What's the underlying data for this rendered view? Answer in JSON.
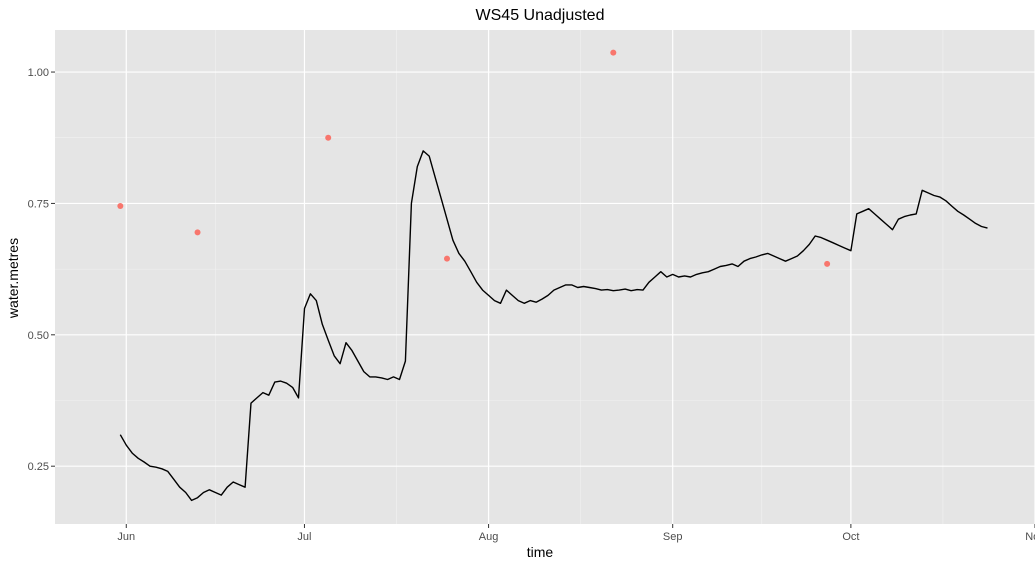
{
  "chart_data": {
    "type": "line",
    "title": "WS45 Unadjusted",
    "xlabel": "time",
    "ylabel": "water.metres",
    "x_ticks": [
      "Jun",
      "Jul",
      "Aug",
      "Sep",
      "Oct",
      "Nov"
    ],
    "y_ticks": [
      "0.25",
      "0.50",
      "0.75",
      "1.00"
    ],
    "ylim": [
      0.14,
      1.08
    ],
    "xlim": [
      "2018-05-20",
      "2018-11-01"
    ],
    "grid": true,
    "background_color": "#e5e5e5",
    "series": [
      {
        "type": "line",
        "color": "#000000",
        "points": [
          [
            "2018-05-31",
            0.31
          ],
          [
            "2018-06-01",
            0.29
          ],
          [
            "2018-06-02",
            0.275
          ],
          [
            "2018-06-03",
            0.265
          ],
          [
            "2018-06-04",
            0.258
          ],
          [
            "2018-06-05",
            0.25
          ],
          [
            "2018-06-06",
            0.248
          ],
          [
            "2018-06-07",
            0.245
          ],
          [
            "2018-06-08",
            0.24
          ],
          [
            "2018-06-09",
            0.225
          ],
          [
            "2018-06-10",
            0.21
          ],
          [
            "2018-06-11",
            0.2
          ],
          [
            "2018-06-12",
            0.185
          ],
          [
            "2018-06-13",
            0.19
          ],
          [
            "2018-06-14",
            0.2
          ],
          [
            "2018-06-15",
            0.205
          ],
          [
            "2018-06-16",
            0.2
          ],
          [
            "2018-06-17",
            0.195
          ],
          [
            "2018-06-18",
            0.21
          ],
          [
            "2018-06-19",
            0.22
          ],
          [
            "2018-06-20",
            0.215
          ],
          [
            "2018-06-21",
            0.21
          ],
          [
            "2018-06-22",
            0.37
          ],
          [
            "2018-06-23",
            0.38
          ],
          [
            "2018-06-24",
            0.39
          ],
          [
            "2018-06-25",
            0.385
          ],
          [
            "2018-06-26",
            0.41
          ],
          [
            "2018-06-27",
            0.412
          ],
          [
            "2018-06-28",
            0.408
          ],
          [
            "2018-06-29",
            0.4
          ],
          [
            "2018-06-30",
            0.38
          ],
          [
            "2018-07-01",
            0.55
          ],
          [
            "2018-07-02",
            0.578
          ],
          [
            "2018-07-03",
            0.565
          ],
          [
            "2018-07-04",
            0.52
          ],
          [
            "2018-07-05",
            0.49
          ],
          [
            "2018-07-06",
            0.46
          ],
          [
            "2018-07-07",
            0.445
          ],
          [
            "2018-07-08",
            0.485
          ],
          [
            "2018-07-09",
            0.47
          ],
          [
            "2018-07-10",
            0.45
          ],
          [
            "2018-07-11",
            0.43
          ],
          [
            "2018-07-12",
            0.42
          ],
          [
            "2018-07-13",
            0.42
          ],
          [
            "2018-07-14",
            0.418
          ],
          [
            "2018-07-15",
            0.415
          ],
          [
            "2018-07-16",
            0.42
          ],
          [
            "2018-07-17",
            0.415
          ],
          [
            "2018-07-18",
            0.45
          ],
          [
            "2018-07-19",
            0.75
          ],
          [
            "2018-07-20",
            0.82
          ],
          [
            "2018-07-21",
            0.85
          ],
          [
            "2018-07-22",
            0.84
          ],
          [
            "2018-07-23",
            0.8
          ],
          [
            "2018-07-24",
            0.76
          ],
          [
            "2018-07-25",
            0.72
          ],
          [
            "2018-07-26",
            0.68
          ],
          [
            "2018-07-27",
            0.655
          ],
          [
            "2018-07-28",
            0.64
          ],
          [
            "2018-07-29",
            0.62
          ],
          [
            "2018-07-30",
            0.6
          ],
          [
            "2018-07-31",
            0.585
          ],
          [
            "2018-08-01",
            0.575
          ],
          [
            "2018-08-02",
            0.565
          ],
          [
            "2018-08-03",
            0.56
          ],
          [
            "2018-08-04",
            0.585
          ],
          [
            "2018-08-05",
            0.575
          ],
          [
            "2018-08-06",
            0.565
          ],
          [
            "2018-08-07",
            0.56
          ],
          [
            "2018-08-08",
            0.565
          ],
          [
            "2018-08-09",
            0.562
          ],
          [
            "2018-08-10",
            0.568
          ],
          [
            "2018-08-11",
            0.575
          ],
          [
            "2018-08-12",
            0.585
          ],
          [
            "2018-08-13",
            0.59
          ],
          [
            "2018-08-14",
            0.595
          ],
          [
            "2018-08-15",
            0.595
          ],
          [
            "2018-08-16",
            0.59
          ],
          [
            "2018-08-17",
            0.592
          ],
          [
            "2018-08-18",
            0.59
          ],
          [
            "2018-08-19",
            0.588
          ],
          [
            "2018-08-20",
            0.585
          ],
          [
            "2018-08-21",
            0.586
          ],
          [
            "2018-08-22",
            0.584
          ],
          [
            "2018-08-23",
            0.585
          ],
          [
            "2018-08-24",
            0.587
          ],
          [
            "2018-08-25",
            0.584
          ],
          [
            "2018-08-26",
            0.586
          ],
          [
            "2018-08-27",
            0.585
          ],
          [
            "2018-08-28",
            0.6
          ],
          [
            "2018-08-29",
            0.61
          ],
          [
            "2018-08-30",
            0.62
          ],
          [
            "2018-08-31",
            0.61
          ],
          [
            "2018-09-01",
            0.615
          ],
          [
            "2018-09-02",
            0.61
          ],
          [
            "2018-09-03",
            0.612
          ],
          [
            "2018-09-04",
            0.61
          ],
          [
            "2018-09-05",
            0.615
          ],
          [
            "2018-09-06",
            0.618
          ],
          [
            "2018-09-07",
            0.62
          ],
          [
            "2018-09-08",
            0.625
          ],
          [
            "2018-09-09",
            0.63
          ],
          [
            "2018-09-10",
            0.632
          ],
          [
            "2018-09-11",
            0.635
          ],
          [
            "2018-09-12",
            0.63
          ],
          [
            "2018-09-13",
            0.64
          ],
          [
            "2018-09-14",
            0.645
          ],
          [
            "2018-09-15",
            0.648
          ],
          [
            "2018-09-16",
            0.652
          ],
          [
            "2018-09-17",
            0.655
          ],
          [
            "2018-09-18",
            0.65
          ],
          [
            "2018-09-19",
            0.645
          ],
          [
            "2018-09-20",
            0.64
          ],
          [
            "2018-09-21",
            0.645
          ],
          [
            "2018-09-22",
            0.65
          ],
          [
            "2018-09-23",
            0.66
          ],
          [
            "2018-09-24",
            0.672
          ],
          [
            "2018-09-25",
            0.688
          ],
          [
            "2018-09-26",
            0.685
          ],
          [
            "2018-09-27",
            0.68
          ],
          [
            "2018-09-28",
            0.675
          ],
          [
            "2018-09-29",
            0.67
          ],
          [
            "2018-09-30",
            0.665
          ],
          [
            "2018-10-01",
            0.66
          ],
          [
            "2018-10-02",
            0.73
          ],
          [
            "2018-10-03",
            0.735
          ],
          [
            "2018-10-04",
            0.74
          ],
          [
            "2018-10-05",
            0.73
          ],
          [
            "2018-10-06",
            0.72
          ],
          [
            "2018-10-07",
            0.71
          ],
          [
            "2018-10-08",
            0.7
          ],
          [
            "2018-10-09",
            0.72
          ],
          [
            "2018-10-10",
            0.725
          ],
          [
            "2018-10-11",
            0.728
          ],
          [
            "2018-10-12",
            0.73
          ],
          [
            "2018-10-13",
            0.775
          ],
          [
            "2018-10-14",
            0.77
          ],
          [
            "2018-10-15",
            0.765
          ],
          [
            "2018-10-16",
            0.762
          ],
          [
            "2018-10-17",
            0.755
          ],
          [
            "2018-10-18",
            0.745
          ],
          [
            "2018-10-19",
            0.735
          ],
          [
            "2018-10-20",
            0.728
          ],
          [
            "2018-10-21",
            0.72
          ],
          [
            "2018-10-22",
            0.712
          ],
          [
            "2018-10-23",
            0.706
          ],
          [
            "2018-10-24",
            0.703
          ]
        ]
      },
      {
        "type": "scatter",
        "color": "#f8766d",
        "points": [
          [
            "2018-05-31",
            0.745
          ],
          [
            "2018-06-13",
            0.695
          ],
          [
            "2018-07-05",
            0.875
          ],
          [
            "2018-07-25",
            0.645
          ],
          [
            "2018-08-22",
            1.037
          ],
          [
            "2018-09-27",
            0.635
          ]
        ]
      }
    ]
  }
}
